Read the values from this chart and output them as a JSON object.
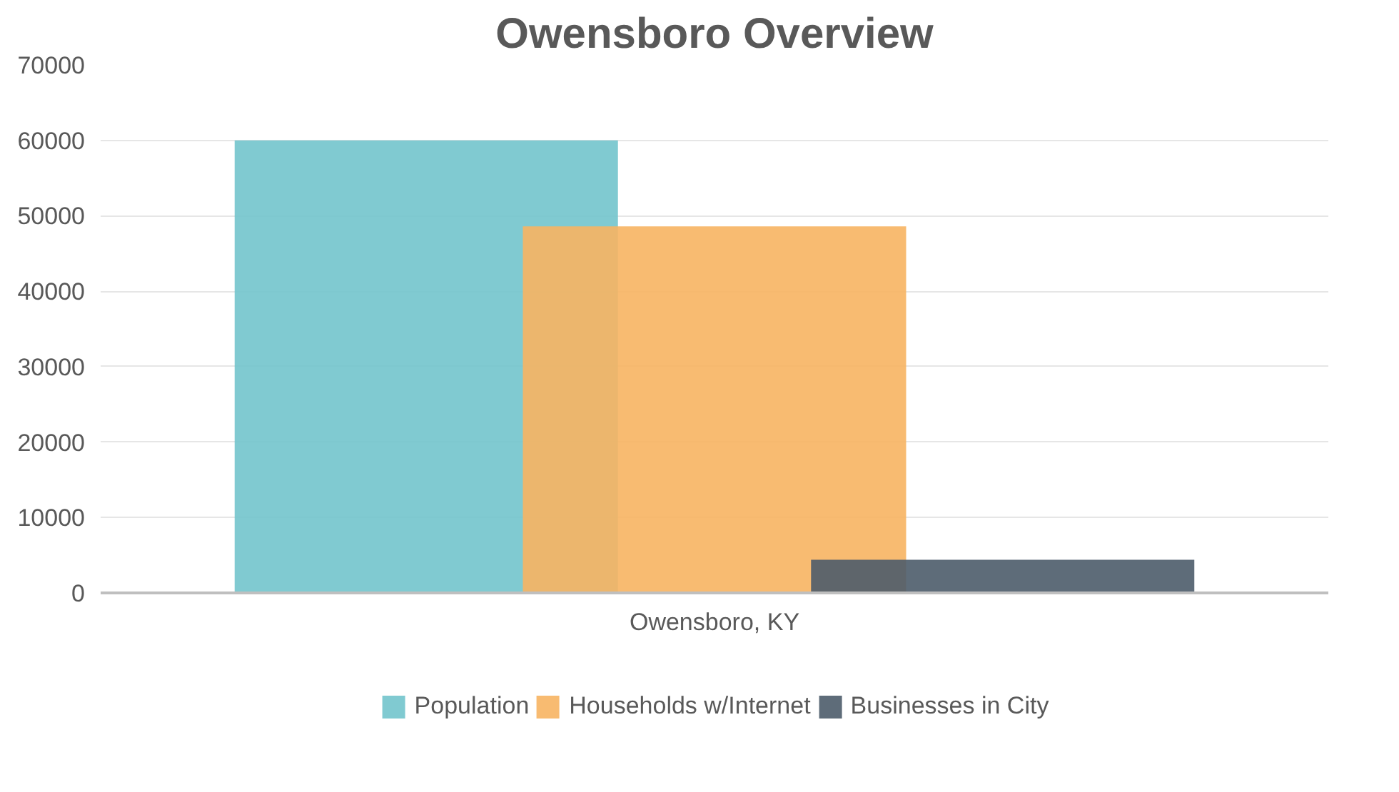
{
  "chart_data": {
    "type": "bar",
    "title": "Owensboro Overview",
    "categories": [
      "Owensboro, KY"
    ],
    "series": [
      {
        "name": "Population",
        "color": "#72c4cc",
        "values": [
          60000
        ]
      },
      {
        "name": "Households w/Internet",
        "color": "#f7b462",
        "values": [
          48600
        ]
      },
      {
        "name": "Businesses in City",
        "color": "#4d5c6a",
        "values": [
          4400
        ]
      }
    ],
    "ylim": [
      0,
      70000
    ],
    "yticks": [
      0,
      10000,
      20000,
      30000,
      40000,
      50000,
      60000,
      70000
    ],
    "grid": "y",
    "legend": "bottom"
  }
}
